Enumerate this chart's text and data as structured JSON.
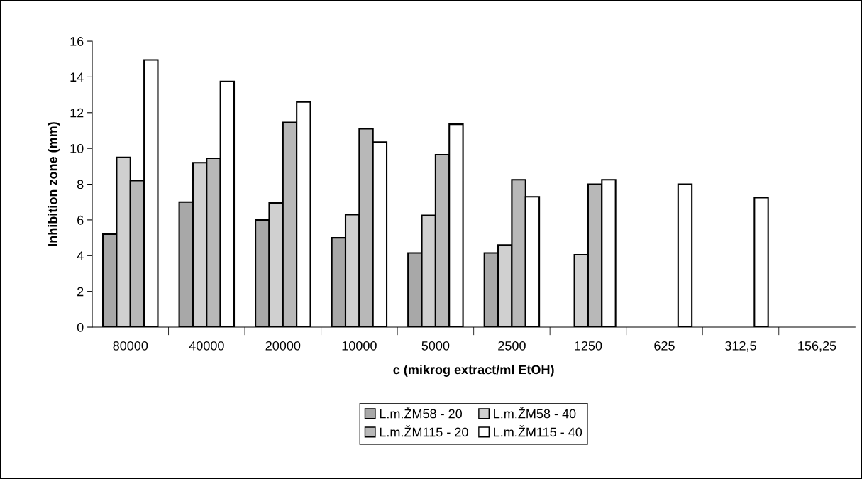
{
  "chart_data": {
    "type": "bar",
    "xlabel": "c (mikrog extract/ml EtOH)",
    "ylabel": "Inhibition zone (mm)",
    "categories": [
      "80000",
      "40000",
      "20000",
      "10000",
      "5000",
      "2500",
      "1250",
      "625",
      "312,5",
      "156,25"
    ],
    "series": [
      {
        "name": "L.m.ŽM58 - 20",
        "color": "#a8a8a8",
        "values": [
          5.2,
          7.0,
          6.0,
          5.0,
          4.15,
          4.15,
          null,
          null,
          null,
          null
        ]
      },
      {
        "name": "L.m.ŽM58 - 40",
        "color": "#d0d0d0",
        "values": [
          9.5,
          9.2,
          6.95,
          6.3,
          6.25,
          4.6,
          4.05,
          null,
          null,
          null
        ]
      },
      {
        "name": "L.m.ŽM115 - 20",
        "color": "#b8b8b8",
        "values": [
          8.2,
          9.45,
          11.45,
          11.1,
          9.65,
          8.25,
          8.0,
          null,
          null,
          null
        ]
      },
      {
        "name": "L.m.ŽM115 - 40",
        "color": "#ffffff",
        "values": [
          14.95,
          13.75,
          12.6,
          10.35,
          11.35,
          7.3,
          8.25,
          8.0,
          7.25,
          null
        ]
      }
    ],
    "ylim": [
      0,
      16
    ],
    "yticks": [
      0,
      2,
      4,
      6,
      8,
      10,
      12,
      14,
      16
    ],
    "grid": false,
    "legend": "bottom"
  }
}
